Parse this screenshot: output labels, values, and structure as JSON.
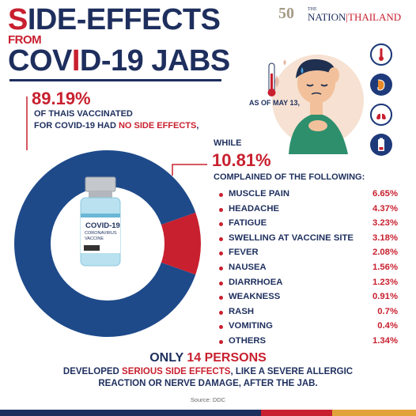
{
  "title": {
    "line1_a": "S",
    "line1_b": "IDE-EFFECTS",
    "line2": "FROM",
    "line3_a": "COV",
    "line3_b": "I",
    "line3_c": "D-19 JABS"
  },
  "logo": {
    "number": "50",
    "the": "THE",
    "name": "NATION",
    "sep": "|",
    "country": "THAILAND"
  },
  "as_of": "AS OF MAY 13,",
  "no_effects": {
    "percent": "89.19%",
    "line1": "OF THAIS VACCINATED",
    "line2_a": "FOR COVID-19 HAD ",
    "line2_b": "NO SIDE EFFECTS",
    "line2_c": ","
  },
  "while_label": "WHILE",
  "side_effects_pct": "10.81%",
  "complained_label": "COMPLAINED OF THE FOLLOWING:",
  "vial": {
    "brand": "COVID-19",
    "sub1": "CORONAVIRUS",
    "sub2": "VACCINE"
  },
  "colors": {
    "navy": "#1e4a8a",
    "red": "#c8202f",
    "dark": "#1e2f5e"
  },
  "chart_data": [
    {
      "type": "pie",
      "style": "donut",
      "slices": [
        {
          "label": "No side effects",
          "value": 89.19,
          "color": "#1e4a8a"
        },
        {
          "label": "Side effects",
          "value": 10.81,
          "color": "#c8202f"
        }
      ]
    },
    {
      "type": "table",
      "title": "COMPLAINED OF THE FOLLOWING:",
      "categories": [
        "MUSCLE PAIN",
        "HEADACHE",
        "FATIGUE",
        "SWELLING AT VACCINE SITE",
        "FEVER",
        "NAUSEA",
        "DIARRHOEA",
        "WEAKNESS",
        "RASH",
        "VOMITING",
        "OTHERS"
      ],
      "values": [
        6.65,
        4.37,
        3.23,
        3.18,
        2.08,
        1.56,
        1.23,
        0.91,
        0.7,
        0.4,
        1.34
      ],
      "value_labels": [
        "6.65%",
        "4.37%",
        "3.23%",
        "3.18%",
        "2.08%",
        "1.56%",
        "1.23%",
        "0.91%",
        "0.7%",
        "0.4%",
        "1.34%"
      ]
    }
  ],
  "footer": {
    "line1_a": "ONLY ",
    "line1_b": "14 PERSONS",
    "line2_a": "DEVELOPED ",
    "line2_b": "SERIOUS SIDE EFFECTS",
    "line2_c": ", LIKE A SEVERE ALLERGIC",
    "line3": "REACTION OR NERVE DAMAGE, AFTER THE JAB.",
    "source": "Source: DDC"
  }
}
